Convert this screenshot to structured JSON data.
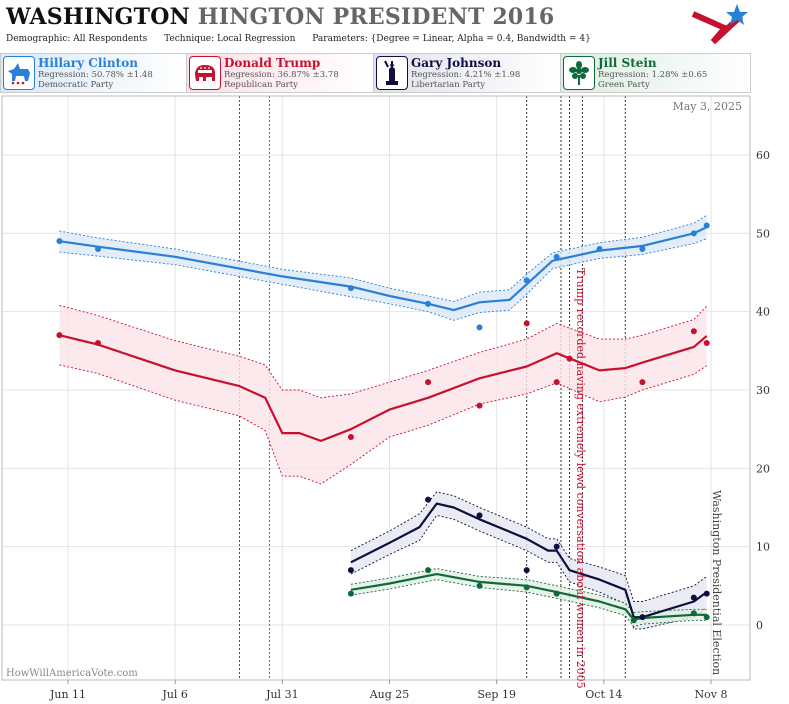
{
  "header": {
    "title_main": "WASHINGTON",
    "title_sub": "HINGTON PRESIDENT 2016",
    "demographic": "Demographic: All Respondents",
    "technique": "Technique: Local Regression",
    "parameters": "Parameters: {Degree = Linear, Alpha = 0.4, Bandwidth = 4}"
  },
  "candidates": [
    {
      "name": "Hillary Clinton",
      "regression": "Regression: 50.78% ±1.48",
      "party": "Democratic Party",
      "color": "#2a7fd6",
      "icon": "donkey-icon"
    },
    {
      "name": "Donald Trump",
      "regression": "Regression: 36.87% ±3.78",
      "party": "Republican Party",
      "color": "#c8102e",
      "icon": "elephant-icon"
    },
    {
      "name": "Gary Johnson",
      "regression": "Regression: 4.21% ±1.98",
      "party": "Libertarian Party",
      "color": "#0e0e40",
      "icon": "liberty-statue-icon"
    },
    {
      "name": "Jill Stein",
      "regression": "Regression: 1.28% ±0.65",
      "party": "Green Party",
      "color": "#0f6a3a",
      "icon": "green-flower-icon"
    }
  ],
  "chart_data": {
    "type": "line",
    "date_label": "May 3, 2025",
    "watermark": "HowWillAmericaVote.com",
    "xaxis_ticks": [
      "Jun 11",
      "Jul 6",
      "Jul 31",
      "Aug 25",
      "Sep 19",
      "Oct 14",
      "Nov 8"
    ],
    "x_range": [
      "2016-06-01",
      "2016-11-08"
    ],
    "ylim": [
      -5,
      68
    ],
    "yticks": [
      0,
      10,
      20,
      30,
      40,
      50,
      60
    ],
    "grid": true,
    "annotations": [
      {
        "text": "Trump recorded having extremely lewd conversation about women in 2005",
        "date": "2016-10-07",
        "color": "#c8102e"
      },
      {
        "text": "Washington Presidential Election",
        "date": "2016-11-08",
        "color": "#444"
      }
    ],
    "event_lines": [
      {
        "date": "2016-07-21",
        "color": "#c8102e"
      },
      {
        "date": "2016-07-28",
        "color": "#2a7fd6"
      },
      {
        "date": "2016-09-26",
        "color": "#333"
      },
      {
        "date": "2016-10-04",
        "color": "#333"
      },
      {
        "date": "2016-10-06",
        "color": "#333"
      },
      {
        "date": "2016-10-09",
        "color": "#333"
      },
      {
        "date": "2016-10-19",
        "color": "#333"
      }
    ],
    "series": [
      {
        "name": "Hillary Clinton",
        "color": "#2a7fd6",
        "band": "#dce8f6",
        "points": [
          [
            "2016-06-09",
            49
          ],
          [
            "2016-06-18",
            48
          ],
          [
            "2016-08-16",
            43
          ],
          [
            "2016-09-03",
            41
          ],
          [
            "2016-09-15",
            38
          ],
          [
            "2016-09-26",
            44
          ],
          [
            "2016-10-03",
            47
          ],
          [
            "2016-10-13",
            48
          ],
          [
            "2016-10-23",
            48
          ],
          [
            "2016-11-04",
            50
          ],
          [
            "2016-11-07",
            51
          ]
        ],
        "trend": [
          [
            "2016-06-09",
            49
          ],
          [
            "2016-06-18",
            48.3
          ],
          [
            "2016-07-06",
            47
          ],
          [
            "2016-07-31",
            44.5
          ],
          [
            "2016-08-16",
            43.2
          ],
          [
            "2016-08-25",
            42
          ],
          [
            "2016-09-03",
            41
          ],
          [
            "2016-09-09",
            40.2
          ],
          [
            "2016-09-15",
            41.2
          ],
          [
            "2016-09-22",
            41.5
          ],
          [
            "2016-09-26",
            43.5
          ],
          [
            "2016-10-02",
            46.5
          ],
          [
            "2016-10-13",
            47.8
          ],
          [
            "2016-10-23",
            48.4
          ],
          [
            "2016-11-04",
            50
          ],
          [
            "2016-11-07",
            50.8
          ]
        ],
        "upper": [
          [
            "2016-06-09",
            50.3
          ],
          [
            "2016-06-18",
            49.4
          ],
          [
            "2016-07-06",
            48
          ],
          [
            "2016-07-31",
            45.4
          ],
          [
            "2016-08-16",
            44.3
          ],
          [
            "2016-08-25",
            43
          ],
          [
            "2016-09-03",
            42
          ],
          [
            "2016-09-09",
            41.3
          ],
          [
            "2016-09-15",
            42.5
          ],
          [
            "2016-09-22",
            42.8
          ],
          [
            "2016-09-26",
            44.8
          ],
          [
            "2016-10-02",
            47.5
          ],
          [
            "2016-10-13",
            48.8
          ],
          [
            "2016-10-23",
            49.5
          ],
          [
            "2016-11-04",
            51.3
          ],
          [
            "2016-11-07",
            52.3
          ]
        ],
        "lower": [
          [
            "2016-06-09",
            47.6
          ],
          [
            "2016-06-18",
            47.1
          ],
          [
            "2016-07-06",
            46
          ],
          [
            "2016-07-31",
            43.5
          ],
          [
            "2016-08-16",
            41.9
          ],
          [
            "2016-08-25",
            41
          ],
          [
            "2016-09-03",
            40
          ],
          [
            "2016-09-09",
            38.9
          ],
          [
            "2016-09-15",
            39.9
          ],
          [
            "2016-09-22",
            40.2
          ],
          [
            "2016-09-26",
            42.2
          ],
          [
            "2016-10-02",
            45.5
          ],
          [
            "2016-10-13",
            46.8
          ],
          [
            "2016-10-23",
            47.3
          ],
          [
            "2016-11-04",
            48.7
          ],
          [
            "2016-11-07",
            49.3
          ]
        ]
      },
      {
        "name": "Donald Trump",
        "color": "#c8102e",
        "band": "#fbe3e8",
        "points": [
          [
            "2016-06-09",
            37
          ],
          [
            "2016-06-18",
            36
          ],
          [
            "2016-08-16",
            24
          ],
          [
            "2016-09-03",
            31
          ],
          [
            "2016-09-15",
            28
          ],
          [
            "2016-09-26",
            38.5
          ],
          [
            "2016-10-03",
            31
          ],
          [
            "2016-10-06",
            34
          ],
          [
            "2016-10-23",
            31
          ],
          [
            "2016-11-04",
            37.5
          ],
          [
            "2016-11-07",
            36
          ]
        ],
        "trend": [
          [
            "2016-06-09",
            37
          ],
          [
            "2016-06-18",
            35.8
          ],
          [
            "2016-07-06",
            32.5
          ],
          [
            "2016-07-21",
            30.5
          ],
          [
            "2016-07-27",
            29
          ],
          [
            "2016-07-31",
            24.5
          ],
          [
            "2016-08-04",
            24.5
          ],
          [
            "2016-08-09",
            23.5
          ],
          [
            "2016-08-16",
            25
          ],
          [
            "2016-08-25",
            27.5
          ],
          [
            "2016-09-03",
            29
          ],
          [
            "2016-09-15",
            31.5
          ],
          [
            "2016-09-26",
            33
          ],
          [
            "2016-10-03",
            34.7
          ],
          [
            "2016-10-13",
            32.5
          ],
          [
            "2016-10-19",
            32.8
          ],
          [
            "2016-10-23",
            33.5
          ],
          [
            "2016-11-04",
            35.5
          ],
          [
            "2016-11-07",
            36.9
          ]
        ],
        "upper": [
          [
            "2016-06-09",
            40.8
          ],
          [
            "2016-06-18",
            39.5
          ],
          [
            "2016-07-06",
            36.3
          ],
          [
            "2016-07-21",
            34.3
          ],
          [
            "2016-07-27",
            33.2
          ],
          [
            "2016-07-31",
            30
          ],
          [
            "2016-08-04",
            30
          ],
          [
            "2016-08-09",
            29
          ],
          [
            "2016-08-16",
            29.5
          ],
          [
            "2016-08-25",
            31
          ],
          [
            "2016-09-03",
            32.5
          ],
          [
            "2016-09-15",
            34.8
          ],
          [
            "2016-09-26",
            36.5
          ],
          [
            "2016-10-03",
            38.5
          ],
          [
            "2016-10-13",
            36.5
          ],
          [
            "2016-10-19",
            36.5
          ],
          [
            "2016-10-23",
            37
          ],
          [
            "2016-11-04",
            39
          ],
          [
            "2016-11-07",
            40.7
          ]
        ],
        "lower": [
          [
            "2016-06-09",
            33.2
          ],
          [
            "2016-06-18",
            32.1
          ],
          [
            "2016-07-06",
            28.7
          ],
          [
            "2016-07-21",
            26.7
          ],
          [
            "2016-07-27",
            24.8
          ],
          [
            "2016-07-31",
            19
          ],
          [
            "2016-08-04",
            19
          ],
          [
            "2016-08-09",
            18
          ],
          [
            "2016-08-16",
            20.5
          ],
          [
            "2016-08-25",
            24
          ],
          [
            "2016-09-03",
            25.5
          ],
          [
            "2016-09-15",
            28.2
          ],
          [
            "2016-09-26",
            29.5
          ],
          [
            "2016-10-03",
            30.9
          ],
          [
            "2016-10-13",
            28.5
          ],
          [
            "2016-10-19",
            29.1
          ],
          [
            "2016-10-23",
            30
          ],
          [
            "2016-11-04",
            32
          ],
          [
            "2016-11-07",
            33.1
          ]
        ]
      },
      {
        "name": "Gary Johnson",
        "color": "#0e0e40",
        "band": "#e6e6f0",
        "points": [
          [
            "2016-08-16",
            7
          ],
          [
            "2016-09-03",
            16
          ],
          [
            "2016-09-15",
            14
          ],
          [
            "2016-09-26",
            7
          ],
          [
            "2016-10-03",
            10
          ],
          [
            "2016-10-23",
            1
          ],
          [
            "2016-11-04",
            3.5
          ],
          [
            "2016-11-07",
            4
          ]
        ],
        "trend": [
          [
            "2016-08-16",
            8
          ],
          [
            "2016-08-25",
            10.5
          ],
          [
            "2016-09-01",
            12.5
          ],
          [
            "2016-09-05",
            15.5
          ],
          [
            "2016-09-09",
            15
          ],
          [
            "2016-09-15",
            13.5
          ],
          [
            "2016-09-26",
            11
          ],
          [
            "2016-10-01",
            9.5
          ],
          [
            "2016-10-03",
            9.5
          ],
          [
            "2016-10-06",
            7
          ],
          [
            "2016-10-13",
            5.8
          ],
          [
            "2016-10-19",
            4.5
          ],
          [
            "2016-10-21",
            1
          ],
          [
            "2016-10-23",
            1
          ],
          [
            "2016-11-04",
            3
          ],
          [
            "2016-11-07",
            4.2
          ]
        ],
        "upper": [
          [
            "2016-08-16",
            9.5
          ],
          [
            "2016-08-25",
            12
          ],
          [
            "2016-09-01",
            14.2
          ],
          [
            "2016-09-05",
            17
          ],
          [
            "2016-09-09",
            16.5
          ],
          [
            "2016-09-15",
            15
          ],
          [
            "2016-09-26",
            12.5
          ],
          [
            "2016-10-01",
            11
          ],
          [
            "2016-10-03",
            11
          ],
          [
            "2016-10-06",
            8.5
          ],
          [
            "2016-10-13",
            7.4
          ],
          [
            "2016-10-19",
            6.3
          ],
          [
            "2016-10-21",
            3
          ],
          [
            "2016-10-23",
            3
          ],
          [
            "2016-11-04",
            5
          ],
          [
            "2016-11-07",
            6.2
          ]
        ],
        "lower": [
          [
            "2016-08-16",
            6.5
          ],
          [
            "2016-08-25",
            9
          ],
          [
            "2016-09-01",
            10.8
          ],
          [
            "2016-09-05",
            14
          ],
          [
            "2016-09-09",
            13.5
          ],
          [
            "2016-09-15",
            12
          ],
          [
            "2016-09-26",
            9.5
          ],
          [
            "2016-10-01",
            8
          ],
          [
            "2016-10-03",
            8
          ],
          [
            "2016-10-06",
            5.5
          ],
          [
            "2016-10-13",
            4.2
          ],
          [
            "2016-10-19",
            2.7
          ],
          [
            "2016-10-21",
            -0.5
          ],
          [
            "2016-10-23",
            -0.5
          ],
          [
            "2016-11-04",
            1
          ],
          [
            "2016-11-07",
            2.2
          ]
        ]
      },
      {
        "name": "Jill Stein",
        "color": "#0f6a3a",
        "band": "#e2efe6",
        "points": [
          [
            "2016-08-16",
            4
          ],
          [
            "2016-09-03",
            7
          ],
          [
            "2016-09-15",
            5
          ],
          [
            "2016-09-26",
            4.8
          ],
          [
            "2016-10-03",
            4
          ],
          [
            "2016-10-21",
            0.6
          ],
          [
            "2016-11-04",
            1.5
          ],
          [
            "2016-11-07",
            1
          ]
        ],
        "trend": [
          [
            "2016-08-16",
            4.5
          ],
          [
            "2016-08-25",
            5.3
          ],
          [
            "2016-09-05",
            6.5
          ],
          [
            "2016-09-15",
            5.5
          ],
          [
            "2016-09-26",
            5
          ],
          [
            "2016-10-03",
            4.2
          ],
          [
            "2016-10-13",
            3
          ],
          [
            "2016-10-19",
            2
          ],
          [
            "2016-10-21",
            0.7
          ],
          [
            "2016-10-23",
            0.9
          ],
          [
            "2016-11-04",
            1.3
          ],
          [
            "2016-11-07",
            1.3
          ]
        ],
        "upper": [
          [
            "2016-08-16",
            5.2
          ],
          [
            "2016-08-25",
            6
          ],
          [
            "2016-09-05",
            7.2
          ],
          [
            "2016-09-15",
            6.2
          ],
          [
            "2016-09-26",
            5.8
          ],
          [
            "2016-10-03",
            5
          ],
          [
            "2016-10-13",
            3.8
          ],
          [
            "2016-10-19",
            2.8
          ],
          [
            "2016-10-21",
            1.6
          ],
          [
            "2016-10-23",
            1.7
          ],
          [
            "2016-11-04",
            2
          ],
          [
            "2016-11-07",
            2
          ]
        ],
        "lower": [
          [
            "2016-08-16",
            3.8
          ],
          [
            "2016-08-25",
            4.6
          ],
          [
            "2016-09-05",
            5.8
          ],
          [
            "2016-09-15",
            4.8
          ],
          [
            "2016-09-26",
            4.2
          ],
          [
            "2016-10-03",
            3.4
          ],
          [
            "2016-10-13",
            2.2
          ],
          [
            "2016-10-19",
            1.2
          ],
          [
            "2016-10-21",
            -0.2
          ],
          [
            "2016-10-23",
            0.1
          ],
          [
            "2016-11-04",
            0.6
          ],
          [
            "2016-11-07",
            0.6
          ]
        ]
      }
    ]
  }
}
